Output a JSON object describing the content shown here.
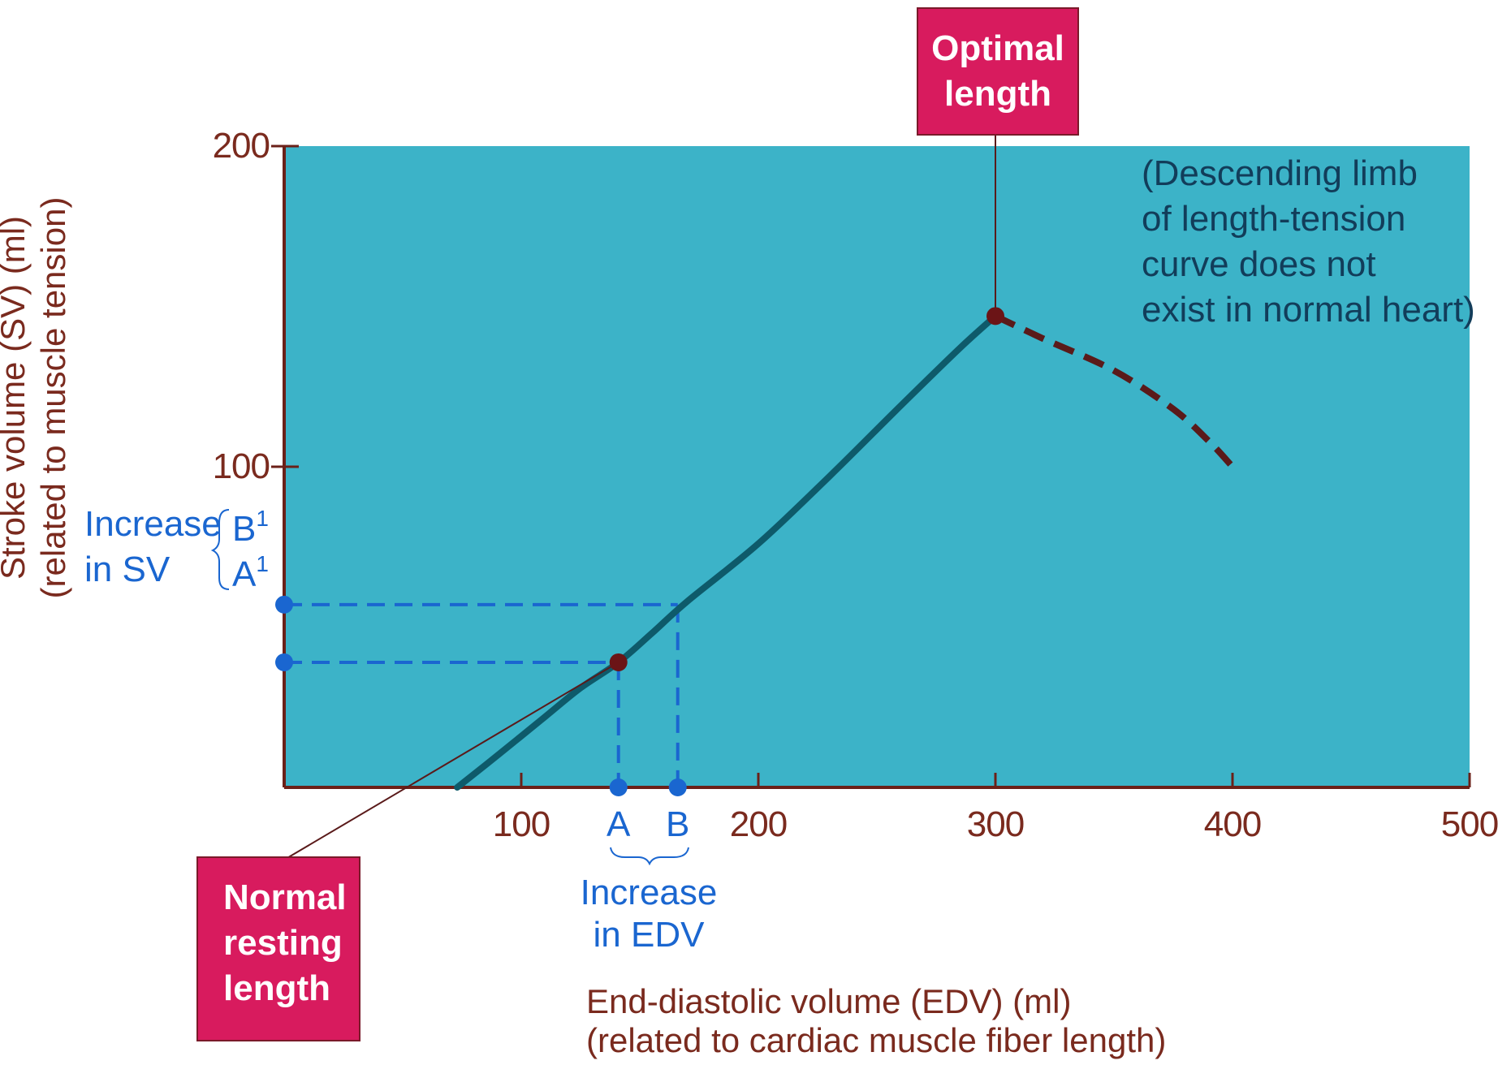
{
  "chart_data": {
    "type": "line",
    "x_axis": {
      "title_lines": [
        "End-diastolic volume (EDV) (ml)",
        "(related to cardiac muscle fiber length)"
      ],
      "range": [
        0,
        500
      ],
      "ticks": [
        100,
        200,
        300,
        400,
        500
      ],
      "tick_labels": [
        "100",
        "200",
        "300",
        "400",
        "500"
      ]
    },
    "y_axis": {
      "title_lines": [
        "Stroke volume (SV) (ml)",
        "(related to muscle tension)"
      ],
      "range": [
        0,
        200
      ],
      "ticks": [
        100,
        200
      ],
      "tick_labels": [
        "100",
        "200"
      ]
    },
    "grid": false,
    "series": [
      {
        "style": "solid",
        "points": [
          [
            73,
            0
          ],
          [
            90,
            10
          ],
          [
            110,
            22
          ],
          [
            125,
            31
          ],
          [
            141,
            39
          ],
          [
            155,
            48
          ],
          [
            170,
            58
          ],
          [
            200,
            76
          ],
          [
            230,
            97
          ],
          [
            260,
            119
          ],
          [
            285,
            137
          ],
          [
            300,
            147
          ]
        ]
      },
      {
        "style": "dashed",
        "points": [
          [
            300,
            147
          ],
          [
            320,
            140
          ],
          [
            350,
            130
          ],
          [
            375,
            118
          ],
          [
            390,
            108
          ],
          [
            400,
            100
          ]
        ]
      }
    ],
    "points": [
      {
        "name": "normal-resting",
        "x": 141,
        "y": 39
      },
      {
        "name": "optimal",
        "x": 300,
        "y": 147
      }
    ],
    "guides": {
      "A": {
        "x": 141,
        "y": 39,
        "x_label": "A",
        "y_label": "A",
        "y_label_sup": "1"
      },
      "B": {
        "x": 166,
        "y": 57,
        "x_label": "B",
        "y_label": "B",
        "y_label_sup": "1"
      }
    },
    "annotations": {
      "optimal_length_lines": [
        "Optimal",
        "length"
      ],
      "normal_resting_lines": [
        "Normal",
        "resting",
        "length"
      ],
      "descending_note_lines": [
        "(Descending limb",
        "of length-tension",
        "curve does not",
        "exist in normal heart)"
      ],
      "increase_sv_lines": [
        "Increase",
        "in SV"
      ],
      "increase_edv_lines": [
        "Increase",
        "in EDV"
      ]
    },
    "colors": {
      "plot_background": "#3cb3c8",
      "curve": "#0e5a6a",
      "dashed_limb": "#5a1a1a",
      "point": "#6b1416",
      "guide": "#1a66d0",
      "axis": "#6b2018",
      "callout_fill": "#d81b5e"
    }
  }
}
